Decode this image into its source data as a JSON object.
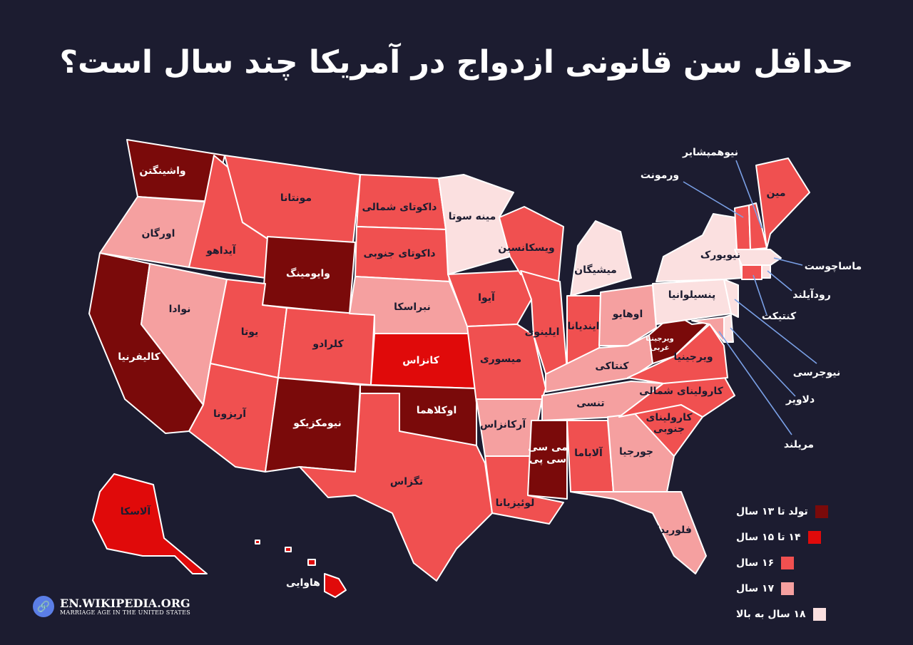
{
  "title": "حداقل سن قانونی ازدواج در آمریکا چند سال است؟",
  "colors": {
    "background": "#1c1c30",
    "0-13": "#7a0a0a",
    "14-15": "#e00a0a",
    "16": "#f05050",
    "17": "#f5a0a0",
    "18+": "#fbe0e0",
    "leader": "#7aa0e6"
  },
  "legend": [
    {
      "label": "تولد تا ۱۳ سال",
      "color": "#7a0a0a"
    },
    {
      "label": "۱۴ تا ۱۵ سال",
      "color": "#e00a0a"
    },
    {
      "label": "۱۶ سال",
      "color": "#f05050"
    },
    {
      "label": "۱۷ سال",
      "color": "#f5a0a0"
    },
    {
      "label": "۱۸ سال به بالا",
      "color": "#fbe0e0"
    }
  ],
  "states": {
    "washington": {
      "label": "واشینگتن",
      "category": "0-13"
    },
    "oregon": {
      "label": "اورگان",
      "category": "17"
    },
    "california": {
      "label": "کالیفرنیا",
      "category": "0-13"
    },
    "nevada": {
      "label": "نوادا",
      "category": "17"
    },
    "idaho": {
      "label": "آیداهو",
      "category": "16"
    },
    "montana": {
      "label": "مونتانا",
      "category": "16"
    },
    "wyoming": {
      "label": "وایومینگ",
      "category": "0-13"
    },
    "utah": {
      "label": "یوتا",
      "category": "16"
    },
    "arizona": {
      "label": "آریزونا",
      "category": "16"
    },
    "colorado": {
      "label": "کلرادو",
      "category": "16"
    },
    "new_mexico": {
      "label": "نیومکزیکو",
      "category": "0-13"
    },
    "north_dakota": {
      "label": "داکوتای شمالی",
      "category": "16"
    },
    "south_dakota": {
      "label": "داکوتای جنوبی",
      "category": "16"
    },
    "nebraska": {
      "label": "نبراسکا",
      "category": "17"
    },
    "kansas": {
      "label": "کانزاس",
      "category": "14-15"
    },
    "oklahoma": {
      "label": "اوکلاهما",
      "category": "0-13"
    },
    "texas": {
      "label": "تگزاس",
      "category": "16"
    },
    "minnesota": {
      "label": "مینه سوتا",
      "category": "18+"
    },
    "iowa": {
      "label": "آیوا",
      "category": "16"
    },
    "missouri": {
      "label": "میسوری",
      "category": "16"
    },
    "arkansas": {
      "label": "آرکانزاس",
      "category": "17"
    },
    "louisiana": {
      "label": "لوئیزیانا",
      "category": "16"
    },
    "wisconsin": {
      "label": "ویسکانسین",
      "category": "16"
    },
    "illinois": {
      "label": "ایلینوی",
      "category": "16"
    },
    "michigan": {
      "label": "میشیگان",
      "category": "18+"
    },
    "indiana": {
      "label": "ایندیانا",
      "category": "16"
    },
    "ohio": {
      "label": "اوهایو",
      "category": "17"
    },
    "kentucky": {
      "label": "کنتاکی",
      "category": "17"
    },
    "tennessee": {
      "label": "تنسی",
      "category": "17"
    },
    "mississippi": {
      "label": "می سی سی پی",
      "category": "0-13"
    },
    "alabama": {
      "label": "آلاباما",
      "category": "16"
    },
    "georgia": {
      "label": "جورجیا",
      "category": "17"
    },
    "florida": {
      "label": "فلوریدا",
      "category": "17"
    },
    "south_carolina": {
      "label": "کارولینای جنوبی",
      "category": "16"
    },
    "north_carolina": {
      "label": "کارولینای شمالی",
      "category": "16"
    },
    "virginia": {
      "label": "ویرجینیا",
      "category": "16"
    },
    "west_virginia": {
      "label": "ویرجینیا غربی",
      "category": "0-13"
    },
    "pennsylvania": {
      "label": "پنسیلوانیا",
      "category": "18+"
    },
    "new_york": {
      "label": "نیویورک",
      "category": "18+"
    },
    "maine": {
      "label": "مین",
      "category": "16"
    },
    "alaska": {
      "label": "آلاسکا",
      "category": "14-15"
    },
    "hawaii": {
      "label": "هاوایی",
      "category": "14-15"
    },
    "vermont": {
      "label": "ورمونت",
      "category": "16"
    },
    "new_hampshire": {
      "label": "نیوهمپشایر",
      "category": "16"
    },
    "massachusetts": {
      "label": "ماساچوست",
      "category": "18+"
    },
    "rhode_island": {
      "label": "رودآیلند",
      "category": "18+"
    },
    "connecticut": {
      "label": "کنتیکت",
      "category": "16"
    },
    "new_jersey": {
      "label": "نیوجرسی",
      "category": "18+"
    },
    "delaware": {
      "label": "دلاویر",
      "category": "18+"
    },
    "maryland": {
      "label": "مریلند",
      "category": "17"
    }
  },
  "source": {
    "url": "EN.WIKIPEDIA.ORG",
    "subtitle": "MARRIAGE AGE IN THE UNITED STATES",
    "icon": "link-icon"
  }
}
